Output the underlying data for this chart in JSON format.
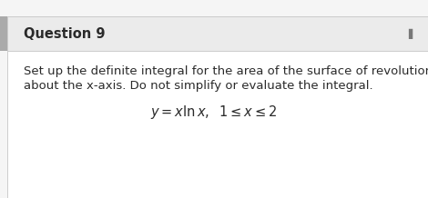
{
  "title": "Question 9",
  "body_text_line1": "Set up the definite integral for the area of the surface of revolution",
  "body_text_line2": "about the x-axis. Do not simplify or evaluate the integral.",
  "formula": "$y = x\\ln x, \\;\\; 1 \\leq x \\leq 2$",
  "background_color": "#ffffff",
  "header_bg_color": "#ebebeb",
  "border_color": "#cccccc",
  "top_bg_color": "#f5f5f5",
  "title_fontsize": 10.5,
  "body_fontsize": 9.5,
  "formula_fontsize": 10.5,
  "text_color": "#2a2a2a",
  "icon_color": "#777777"
}
